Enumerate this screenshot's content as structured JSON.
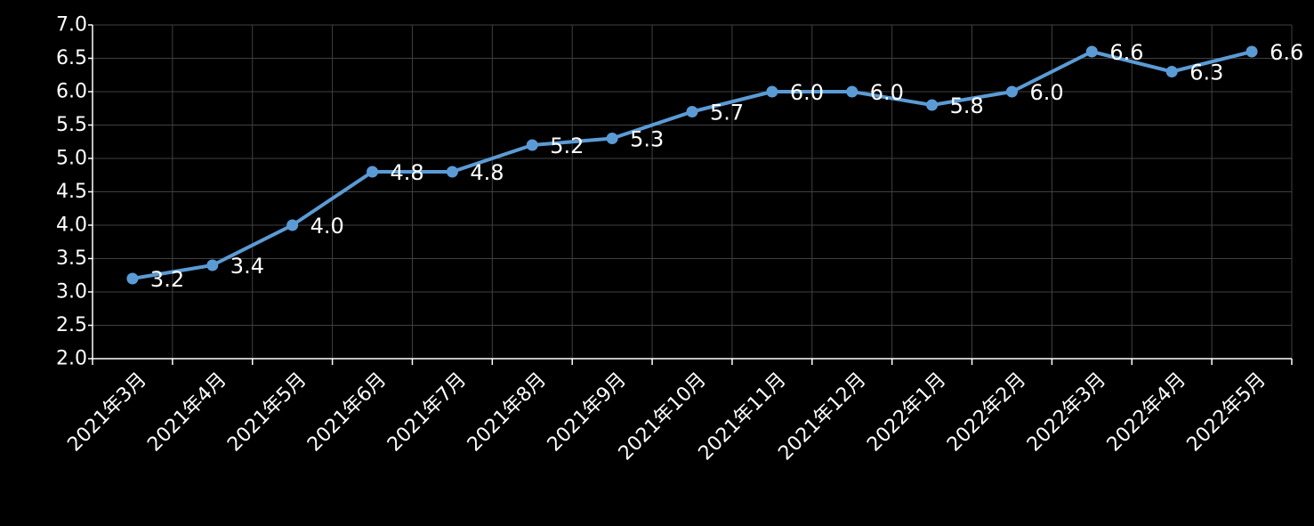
{
  "chart_data": {
    "type": "line",
    "categories": [
      "2021年3月",
      "2021年4月",
      "2021年5月",
      "2021年6月",
      "2021年7月",
      "2021年8月",
      "2021年9月",
      "2021年10月",
      "2021年11月",
      "2021年12月",
      "2022年1月",
      "2022年2月",
      "2022年3月",
      "2022年4月",
      "2022年5月"
    ],
    "series": [
      {
        "values": [
          3.2,
          3.4,
          4.0,
          4.8,
          4.8,
          5.2,
          5.3,
          5.7,
          6.0,
          6.0,
          5.8,
          6.0,
          6.6,
          6.3,
          6.6
        ],
        "color": "#5b9bd5"
      }
    ],
    "data_labels": [
      "3.2",
      "3.4",
      "4.0",
      "4.8",
      "4.8",
      "5.2",
      "5.3",
      "5.7",
      "6.0",
      "6.0",
      "5.8",
      "6.0",
      "6.6",
      "6.3",
      "6.6"
    ],
    "yticks": [
      "2.0",
      "2.5",
      "3.0",
      "3.5",
      "4.0",
      "4.5",
      "5.0",
      "5.5",
      "6.0",
      "6.5",
      "7.0"
    ],
    "ylim": [
      2.0,
      7.0
    ],
    "grid": true,
    "legend": "none",
    "background": "#000000",
    "gridColor": "#404040",
    "axisColor": "#ffffff",
    "textColor": "#ffffff"
  }
}
